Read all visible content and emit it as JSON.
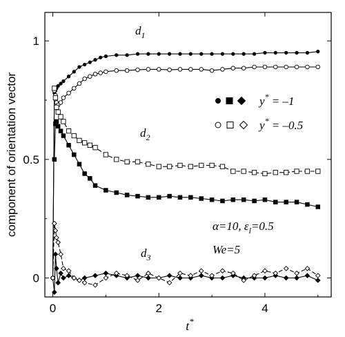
{
  "chart_data": {
    "type": "line",
    "xlabel": "t",
    "xlabel_sup": "*",
    "ylabel": "component of orientation vector",
    "xlim": [
      -0.15,
      5.25
    ],
    "ylim": [
      -0.08,
      1.12
    ],
    "xticks": [
      0,
      2,
      4
    ],
    "xtick_labels": [
      "0",
      "2",
      "4"
    ],
    "yticks": [
      0,
      0.5,
      1
    ],
    "ytick_labels": [
      "0",
      "0.5",
      "1"
    ],
    "grid": false,
    "legend": {
      "position": "right",
      "entries": [
        {
          "markers": "filled",
          "label_main": "y",
          "label_sup": "*",
          "label_rest": " = –1"
        },
        {
          "markers": "open",
          "label_main": "y",
          "label_sup": "*",
          "label_rest": " = –0.5"
        }
      ]
    },
    "annotations": {
      "d1": {
        "main": "d",
        "sub": "1"
      },
      "d2": {
        "main": "d",
        "sub": "2"
      },
      "d3": {
        "main": "d",
        "sub": "3"
      },
      "params": {
        "alpha": "α=10, ",
        "eps": "ε",
        "eps_sub": "l",
        "eps_rest": "=0.5"
      },
      "we": "We=5"
    },
    "series": [
      {
        "component": "d1",
        "group": "y*=-1",
        "marker": "circle",
        "filled": true,
        "dashed": false,
        "x": [
          0.0,
          0.03,
          0.05,
          0.07,
          0.1,
          0.15,
          0.2,
          0.3,
          0.4,
          0.5,
          0.6,
          0.7,
          0.8,
          0.9,
          1.0,
          1.2,
          1.4,
          1.6,
          1.8,
          2.0,
          2.2,
          2.4,
          2.6,
          2.8,
          3.0,
          3.2,
          3.4,
          3.6,
          3.8,
          4.0,
          4.2,
          4.4,
          4.6,
          4.8,
          5.0
        ],
        "y": [
          0.0,
          0.78,
          0.79,
          0.8,
          0.81,
          0.82,
          0.83,
          0.85,
          0.87,
          0.89,
          0.9,
          0.91,
          0.92,
          0.93,
          0.935,
          0.94,
          0.94,
          0.945,
          0.945,
          0.945,
          0.945,
          0.945,
          0.945,
          0.945,
          0.945,
          0.945,
          0.945,
          0.945,
          0.945,
          0.95,
          0.95,
          0.95,
          0.95,
          0.95,
          0.955
        ]
      },
      {
        "component": "d1",
        "group": "y*=-0.5",
        "marker": "circle",
        "filled": false,
        "dashed": false,
        "x": [
          0.0,
          0.03,
          0.05,
          0.07,
          0.1,
          0.15,
          0.2,
          0.3,
          0.4,
          0.5,
          0.6,
          0.7,
          0.8,
          0.9,
          1.0,
          1.2,
          1.4,
          1.6,
          1.8,
          2.0,
          2.2,
          2.4,
          2.6,
          2.8,
          3.0,
          3.2,
          3.4,
          3.6,
          3.8,
          4.0,
          4.2,
          4.4,
          4.6,
          4.8,
          5.0
        ],
        "y": [
          0.0,
          0.79,
          0.77,
          0.74,
          0.73,
          0.74,
          0.76,
          0.78,
          0.8,
          0.82,
          0.84,
          0.85,
          0.86,
          0.865,
          0.87,
          0.875,
          0.875,
          0.878,
          0.88,
          0.88,
          0.878,
          0.88,
          0.88,
          0.88,
          0.875,
          0.88,
          0.885,
          0.885,
          0.89,
          0.89,
          0.89,
          0.89,
          0.89,
          0.89,
          0.89
        ]
      },
      {
        "component": "d2",
        "group": "y*=-1",
        "marker": "square",
        "filled": true,
        "dashed": false,
        "x": [
          0.03,
          0.05,
          0.07,
          0.1,
          0.15,
          0.2,
          0.3,
          0.4,
          0.5,
          0.6,
          0.7,
          0.8,
          1.0,
          1.2,
          1.4,
          1.6,
          1.8,
          2.0,
          2.2,
          2.4,
          2.6,
          2.8,
          3.0,
          3.2,
          3.4,
          3.6,
          3.8,
          4.0,
          4.2,
          4.4,
          4.6,
          4.8,
          5.0
        ],
        "y": [
          0.5,
          0.65,
          0.66,
          0.64,
          0.62,
          0.6,
          0.56,
          0.52,
          0.48,
          0.44,
          0.42,
          0.39,
          0.37,
          0.36,
          0.35,
          0.345,
          0.34,
          0.34,
          0.345,
          0.34,
          0.34,
          0.335,
          0.33,
          0.325,
          0.33,
          0.33,
          0.325,
          0.33,
          0.32,
          0.32,
          0.32,
          0.31,
          0.3
        ]
      },
      {
        "component": "d2",
        "group": "y*=-0.5",
        "marker": "square",
        "filled": false,
        "dashed": true,
        "x": [
          0.03,
          0.05,
          0.07,
          0.1,
          0.15,
          0.2,
          0.3,
          0.4,
          0.5,
          0.6,
          0.7,
          0.8,
          1.0,
          1.2,
          1.4,
          1.6,
          1.8,
          2.0,
          2.2,
          2.4,
          2.6,
          2.8,
          3.0,
          3.2,
          3.4,
          3.6,
          3.8,
          4.0,
          4.2,
          4.4,
          4.6,
          4.8,
          5.0
        ],
        "y": [
          0.8,
          0.76,
          0.72,
          0.7,
          0.68,
          0.66,
          0.62,
          0.6,
          0.58,
          0.57,
          0.56,
          0.55,
          0.52,
          0.5,
          0.49,
          0.49,
          0.48,
          0.47,
          0.47,
          0.475,
          0.47,
          0.475,
          0.475,
          0.47,
          0.45,
          0.45,
          0.445,
          0.44,
          0.445,
          0.445,
          0.45,
          0.45,
          0.45
        ]
      },
      {
        "component": "d3",
        "group": "y*=-1",
        "marker": "diamond",
        "filled": true,
        "dashed": false,
        "x": [
          0.0,
          0.03,
          0.05,
          0.07,
          0.1,
          0.15,
          0.2,
          0.3,
          0.4,
          0.5,
          0.6,
          0.8,
          1.0,
          1.2,
          1.4,
          1.6,
          1.8,
          2.0,
          2.2,
          2.4,
          2.6,
          2.8,
          3.0,
          3.2,
          3.4,
          3.6,
          3.8,
          4.0,
          4.2,
          4.4,
          4.6,
          4.8,
          5.0
        ],
        "y": [
          0.0,
          -0.06,
          0.1,
          0.04,
          -0.02,
          0.02,
          0.0,
          0.01,
          0.0,
          -0.01,
          0.0,
          0.01,
          0.02,
          0.01,
          0.0,
          0.01,
          0.0,
          0.0,
          0.01,
          0.0,
          0.0,
          0.01,
          0.0,
          0.0,
          0.01,
          0.0,
          0.0,
          0.0,
          0.01,
          0.0,
          0.0,
          0.01,
          -0.01
        ]
      },
      {
        "component": "d3",
        "group": "y*=-0.5",
        "marker": "diamond",
        "filled": false,
        "dashed": true,
        "x": [
          0.0,
          0.03,
          0.05,
          0.07,
          0.1,
          0.15,
          0.2,
          0.3,
          0.4,
          0.5,
          0.6,
          0.8,
          1.0,
          1.2,
          1.4,
          1.6,
          1.8,
          2.0,
          2.2,
          2.4,
          2.6,
          2.8,
          3.0,
          3.2,
          3.4,
          3.6,
          3.8,
          4.0,
          4.2,
          4.4,
          4.6,
          4.8,
          5.0
        ],
        "y": [
          0.0,
          0.23,
          0.2,
          0.17,
          0.15,
          0.1,
          0.04,
          0.03,
          0.0,
          -0.01,
          -0.02,
          -0.03,
          0.0,
          0.02,
          0.01,
          -0.01,
          0.02,
          0.0,
          -0.02,
          0.02,
          0.01,
          0.03,
          0.01,
          0.03,
          0.02,
          -0.01,
          0.01,
          0.03,
          0.02,
          0.04,
          0.02,
          0.04,
          0.01
        ]
      }
    ]
  }
}
